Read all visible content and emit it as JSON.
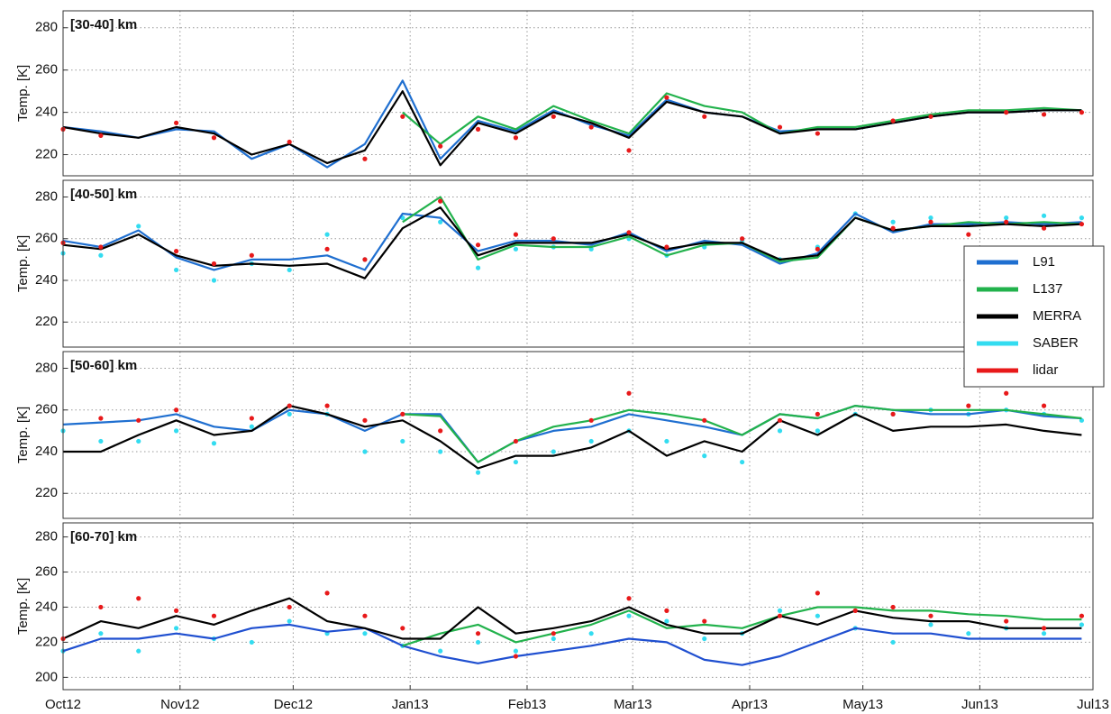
{
  "chart_data": [
    {
      "type": "line",
      "label": "[30-40] km",
      "ylabel": "Temp. [K]",
      "x": [
        0,
        10,
        20,
        30,
        40,
        50,
        60,
        70,
        80,
        90,
        100,
        110,
        120,
        130,
        140,
        150,
        160,
        170,
        180,
        190,
        200,
        210,
        220,
        230,
        240,
        250,
        260,
        270
      ],
      "xlim": [
        0,
        273
      ],
      "ylim": [
        210,
        288
      ],
      "yticks": [
        220,
        240,
        260,
        280
      ],
      "grid": true,
      "series": [
        {
          "name": "L91",
          "color": "#1f6fd0",
          "style": "line",
          "values": [
            233,
            231,
            228,
            232,
            231,
            218,
            225,
            214,
            225,
            255,
            218,
            236,
            231,
            241,
            234,
            229,
            246,
            240,
            238,
            231,
            232,
            232,
            235,
            238,
            240,
            240,
            241,
            241
          ]
        },
        {
          "name": "L137",
          "color": "#22b24c",
          "style": "line",
          "values": [
            null,
            null,
            null,
            null,
            null,
            null,
            null,
            null,
            null,
            240,
            225,
            238,
            232,
            243,
            236,
            230,
            249,
            243,
            240,
            230,
            233,
            233,
            236,
            239,
            241,
            241,
            242,
            241
          ]
        },
        {
          "name": "MERRA",
          "color": "#000000",
          "style": "line",
          "values": [
            233,
            230,
            228,
            233,
            230,
            220,
            225,
            216,
            222,
            250,
            215,
            235,
            230,
            240,
            235,
            228,
            245,
            240,
            238,
            230,
            232,
            232,
            235,
            238,
            240,
            240,
            241,
            241
          ]
        },
        {
          "name": "lidar",
          "color": "#e8191a",
          "style": "points",
          "values": [
            232,
            229,
            null,
            235,
            228,
            null,
            226,
            null,
            218,
            238,
            224,
            232,
            228,
            238,
            233,
            222,
            247,
            238,
            null,
            233,
            230,
            null,
            236,
            238,
            null,
            240,
            239,
            240
          ]
        }
      ]
    },
    {
      "type": "line",
      "label": "[40-50] km",
      "ylabel": "Temp. [K]",
      "x": [
        0,
        10,
        20,
        30,
        40,
        50,
        60,
        70,
        80,
        90,
        100,
        110,
        120,
        130,
        140,
        150,
        160,
        170,
        180,
        190,
        200,
        210,
        220,
        230,
        240,
        250,
        260,
        270
      ],
      "xlim": [
        0,
        273
      ],
      "ylim": [
        208,
        288
      ],
      "yticks": [
        220,
        240,
        260,
        280
      ],
      "grid": true,
      "legend": "right",
      "series": [
        {
          "name": "L91",
          "color": "#1f6fd0",
          "style": "line",
          "values": [
            259,
            256,
            264,
            251,
            245,
            250,
            250,
            252,
            245,
            272,
            270,
            254,
            259,
            259,
            257,
            263,
            254,
            259,
            257,
            248,
            253,
            272,
            263,
            267,
            267,
            268,
            267,
            268
          ]
        },
        {
          "name": "L137",
          "color": "#22b24c",
          "style": "line",
          "values": [
            null,
            null,
            null,
            null,
            null,
            null,
            null,
            null,
            null,
            268,
            280,
            250,
            257,
            256,
            256,
            261,
            252,
            257,
            258,
            249,
            251,
            270,
            264,
            266,
            268,
            267,
            268,
            267
          ]
        },
        {
          "name": "MERRA",
          "color": "#000000",
          "style": "line",
          "values": [
            257,
            255,
            262,
            252,
            247,
            248,
            247,
            248,
            241,
            265,
            275,
            252,
            258,
            258,
            258,
            262,
            255,
            258,
            258,
            250,
            252,
            270,
            264,
            266,
            266,
            267,
            266,
            267
          ]
        },
        {
          "name": "SABER",
          "color": "#33dcf0",
          "style": "points",
          "values": [
            253,
            252,
            266,
            245,
            240,
            248,
            245,
            262,
            250,
            270,
            268,
            246,
            255,
            256,
            255,
            260,
            252,
            256,
            259,
            250,
            256,
            272,
            268,
            270,
            267,
            270,
            271,
            270
          ]
        },
        {
          "name": "lidar",
          "color": "#e8191a",
          "style": "points",
          "values": [
            258,
            256,
            null,
            254,
            248,
            252,
            null,
            255,
            250,
            null,
            278,
            257,
            262,
            260,
            null,
            263,
            256,
            null,
            260,
            null,
            255,
            null,
            265,
            268,
            262,
            268,
            265,
            267
          ]
        }
      ]
    },
    {
      "type": "line",
      "label": "[50-60] km",
      "ylabel": "Temp. [K]",
      "x": [
        0,
        10,
        20,
        30,
        40,
        50,
        60,
        70,
        80,
        90,
        100,
        110,
        120,
        130,
        140,
        150,
        160,
        170,
        180,
        190,
        200,
        210,
        220,
        230,
        240,
        250,
        260,
        270
      ],
      "xlim": [
        0,
        273
      ],
      "ylim": [
        208,
        288
      ],
      "yticks": [
        220,
        240,
        260,
        280
      ],
      "grid": true,
      "series": [
        {
          "name": "L91",
          "color": "#1f6fd0",
          "style": "line",
          "values": [
            253,
            254,
            255,
            258,
            252,
            250,
            260,
            258,
            250,
            258,
            258,
            235,
            245,
            250,
            252,
            258,
            255,
            252,
            248,
            258,
            256,
            262,
            260,
            258,
            258,
            260,
            257,
            256
          ]
        },
        {
          "name": "L137",
          "color": "#22b24c",
          "style": "line",
          "values": [
            null,
            null,
            null,
            null,
            null,
            null,
            null,
            null,
            null,
            258,
            257,
            235,
            245,
            252,
            255,
            260,
            258,
            255,
            248,
            258,
            256,
            262,
            260,
            260,
            260,
            260,
            258,
            256
          ]
        },
        {
          "name": "MERRA",
          "color": "#000000",
          "style": "line",
          "values": [
            240,
            240,
            248,
            255,
            248,
            250,
            262,
            258,
            252,
            255,
            245,
            232,
            238,
            238,
            242,
            250,
            238,
            245,
            240,
            255,
            248,
            258,
            250,
            252,
            252,
            253,
            250,
            248
          ]
        },
        {
          "name": "SABER",
          "color": "#33dcf0",
          "style": "points",
          "values": [
            250,
            245,
            245,
            250,
            244,
            252,
            258,
            258,
            240,
            245,
            240,
            230,
            235,
            240,
            245,
            250,
            245,
            238,
            235,
            250,
            250,
            258,
            258,
            260,
            258,
            260,
            258,
            255
          ]
        },
        {
          "name": "lidar",
          "color": "#e8191a",
          "style": "points",
          "values": [
            null,
            256,
            255,
            260,
            null,
            256,
            262,
            262,
            255,
            258,
            250,
            null,
            245,
            null,
            255,
            268,
            null,
            255,
            null,
            255,
            258,
            null,
            258,
            null,
            262,
            268,
            262,
            null
          ]
        }
      ]
    },
    {
      "type": "line",
      "label": "[60-70] km",
      "ylabel": "Temp. [K]",
      "x": [
        0,
        10,
        20,
        30,
        40,
        50,
        60,
        70,
        80,
        90,
        100,
        110,
        120,
        130,
        140,
        150,
        160,
        170,
        180,
        190,
        200,
        210,
        220,
        230,
        240,
        250,
        260,
        270
      ],
      "xlim": [
        0,
        273
      ],
      "ylim": [
        193,
        288
      ],
      "yticks": [
        200,
        220,
        240,
        260,
        280
      ],
      "grid": true,
      "xticks": [
        {
          "value": 0,
          "label": "Oct12"
        },
        {
          "value": 31,
          "label": "Nov12"
        },
        {
          "value": 61,
          "label": "Dec12"
        },
        {
          "value": 92,
          "label": "Jan13"
        },
        {
          "value": 123,
          "label": "Feb13"
        },
        {
          "value": 151,
          "label": "Mar13"
        },
        {
          "value": 182,
          "label": "Apr13"
        },
        {
          "value": 212,
          "label": "May13"
        },
        {
          "value": 243,
          "label": "Jun13"
        },
        {
          "value": 273,
          "label": "Jul13"
        }
      ],
      "series": [
        {
          "name": "L91",
          "color": "#1f4fd0",
          "style": "line",
          "values": [
            215,
            222,
            222,
            225,
            222,
            228,
            230,
            226,
            228,
            218,
            212,
            208,
            212,
            215,
            218,
            222,
            220,
            210,
            207,
            212,
            220,
            228,
            225,
            225,
            222,
            222,
            222,
            222
          ]
        },
        {
          "name": "L137",
          "color": "#22b24c",
          "style": "line",
          "values": [
            null,
            null,
            null,
            null,
            null,
            null,
            null,
            null,
            null,
            218,
            225,
            230,
            220,
            225,
            230,
            238,
            228,
            230,
            228,
            235,
            240,
            240,
            238,
            238,
            236,
            235,
            233,
            233
          ]
        },
        {
          "name": "MERRA",
          "color": "#000000",
          "style": "line",
          "values": [
            222,
            232,
            228,
            235,
            230,
            238,
            245,
            232,
            228,
            222,
            222,
            240,
            225,
            228,
            232,
            240,
            230,
            225,
            225,
            235,
            230,
            238,
            234,
            232,
            232,
            228,
            228,
            228
          ]
        },
        {
          "name": "SABER",
          "color": "#33dcf0",
          "style": "points",
          "values": [
            215,
            225,
            215,
            228,
            222,
            220,
            232,
            225,
            225,
            218,
            215,
            220,
            215,
            222,
            225,
            235,
            232,
            222,
            225,
            238,
            235,
            228,
            220,
            230,
            225,
            228,
            225,
            230
          ]
        },
        {
          "name": "lidar",
          "color": "#e8191a",
          "style": "points",
          "values": [
            222,
            240,
            245,
            238,
            235,
            null,
            240,
            248,
            235,
            228,
            null,
            225,
            212,
            225,
            null,
            245,
            238,
            232,
            null,
            235,
            248,
            238,
            240,
            235,
            null,
            232,
            228,
            235
          ]
        }
      ]
    }
  ]
}
